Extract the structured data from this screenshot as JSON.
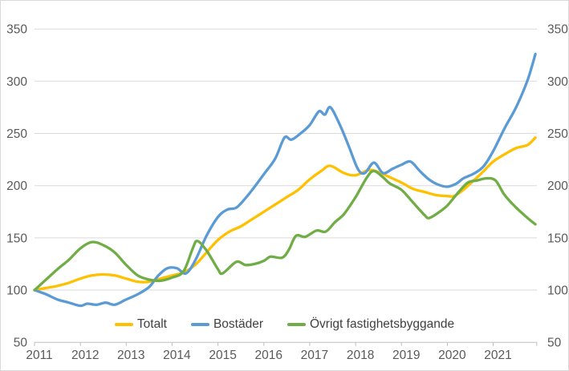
{
  "chart_data": {
    "type": "line",
    "title": "",
    "smoothed": true,
    "grid": true,
    "legend_position": "bottom",
    "x_axis": {
      "range": [
        2011,
        2022.05
      ],
      "tick_labels": [
        "2011",
        "2012",
        "2013",
        "2014",
        "2015",
        "2016",
        "2017",
        "2018",
        "2019",
        "2020",
        "2021"
      ],
      "tick_years": [
        2011,
        2012,
        2013,
        2014,
        2015,
        2016,
        2017,
        2018,
        2019,
        2020,
        2021
      ]
    },
    "y_axis": {
      "range": [
        50,
        350
      ],
      "ticks": [
        50,
        100,
        150,
        200,
        250,
        300,
        350
      ],
      "sides": "both"
    },
    "style": {
      "gridline_color": "#d9d9d9",
      "axis_line_color": "#bfbfbf",
      "axis_text_color": "#595959",
      "background": "#ffffff"
    },
    "series": [
      {
        "name": "Totalt",
        "color": "#FFC000",
        "points": [
          [
            2011.0,
            100
          ],
          [
            2011.25,
            102
          ],
          [
            2011.5,
            104
          ],
          [
            2011.75,
            107
          ],
          [
            2012.0,
            111
          ],
          [
            2012.25,
            114
          ],
          [
            2012.5,
            115
          ],
          [
            2012.75,
            114
          ],
          [
            2013.0,
            111
          ],
          [
            2013.25,
            108
          ],
          [
            2013.5,
            108
          ],
          [
            2013.75,
            111
          ],
          [
            2014.0,
            114
          ],
          [
            2014.25,
            117
          ],
          [
            2014.5,
            124
          ],
          [
            2014.75,
            136
          ],
          [
            2015.0,
            148
          ],
          [
            2015.25,
            156
          ],
          [
            2015.5,
            161
          ],
          [
            2015.75,
            168
          ],
          [
            2016.0,
            175
          ],
          [
            2016.25,
            182
          ],
          [
            2016.5,
            189
          ],
          [
            2016.75,
            196
          ],
          [
            2017.0,
            206
          ],
          [
            2017.25,
            214
          ],
          [
            2017.45,
            219
          ],
          [
            2017.75,
            212
          ],
          [
            2018.0,
            210
          ],
          [
            2018.3,
            215
          ],
          [
            2018.55,
            212
          ],
          [
            2018.75,
            208
          ],
          [
            2019.0,
            203
          ],
          [
            2019.25,
            197
          ],
          [
            2019.5,
            194
          ],
          [
            2019.75,
            191
          ],
          [
            2020.0,
            190
          ],
          [
            2020.15,
            190
          ],
          [
            2020.35,
            196
          ],
          [
            2020.55,
            204
          ],
          [
            2020.75,
            212
          ],
          [
            2021.0,
            223
          ],
          [
            2021.25,
            230
          ],
          [
            2021.5,
            236
          ],
          [
            2021.75,
            239
          ],
          [
            2021.92,
            246
          ]
        ]
      },
      {
        "name": "Bostäder",
        "color": "#5B9BD5",
        "points": [
          [
            2011.0,
            100
          ],
          [
            2011.25,
            96
          ],
          [
            2011.5,
            91
          ],
          [
            2011.75,
            88
          ],
          [
            2012.0,
            85
          ],
          [
            2012.15,
            87
          ],
          [
            2012.35,
            86
          ],
          [
            2012.55,
            88
          ],
          [
            2012.75,
            86
          ],
          [
            2013.0,
            91
          ],
          [
            2013.25,
            96
          ],
          [
            2013.5,
            103
          ],
          [
            2013.7,
            114
          ],
          [
            2013.9,
            121
          ],
          [
            2014.1,
            121
          ],
          [
            2014.3,
            116
          ],
          [
            2014.5,
            128
          ],
          [
            2014.75,
            152
          ],
          [
            2015.0,
            170
          ],
          [
            2015.2,
            177
          ],
          [
            2015.4,
            179
          ],
          [
            2015.6,
            188
          ],
          [
            2015.8,
            199
          ],
          [
            2016.0,
            211
          ],
          [
            2016.25,
            226
          ],
          [
            2016.45,
            246
          ],
          [
            2016.6,
            244
          ],
          [
            2016.8,
            250
          ],
          [
            2017.0,
            258
          ],
          [
            2017.2,
            271
          ],
          [
            2017.33,
            268
          ],
          [
            2017.45,
            275
          ],
          [
            2017.65,
            259
          ],
          [
            2017.85,
            238
          ],
          [
            2018.05,
            216
          ],
          [
            2018.2,
            212
          ],
          [
            2018.4,
            222
          ],
          [
            2018.6,
            212
          ],
          [
            2018.8,
            216
          ],
          [
            2019.0,
            220
          ],
          [
            2019.2,
            223
          ],
          [
            2019.4,
            214
          ],
          [
            2019.6,
            206
          ],
          [
            2019.8,
            201
          ],
          [
            2020.0,
            199
          ],
          [
            2020.2,
            202
          ],
          [
            2020.35,
            207
          ],
          [
            2020.6,
            212
          ],
          [
            2020.8,
            219
          ],
          [
            2021.0,
            233
          ],
          [
            2021.25,
            255
          ],
          [
            2021.5,
            275
          ],
          [
            2021.75,
            301
          ],
          [
            2021.92,
            326
          ]
        ]
      },
      {
        "name": "Övrigt fastighetsbyggande",
        "color": "#70AD47",
        "points": [
          [
            2011.0,
            100
          ],
          [
            2011.25,
            110
          ],
          [
            2011.5,
            120
          ],
          [
            2011.75,
            129
          ],
          [
            2012.0,
            140
          ],
          [
            2012.25,
            146
          ],
          [
            2012.5,
            143
          ],
          [
            2012.75,
            136
          ],
          [
            2013.0,
            124
          ],
          [
            2013.25,
            114
          ],
          [
            2013.5,
            110
          ],
          [
            2013.75,
            109
          ],
          [
            2014.0,
            112
          ],
          [
            2014.25,
            118
          ],
          [
            2014.45,
            140
          ],
          [
            2014.55,
            147
          ],
          [
            2014.75,
            138
          ],
          [
            2015.0,
            120
          ],
          [
            2015.1,
            116
          ],
          [
            2015.4,
            127
          ],
          [
            2015.6,
            124
          ],
          [
            2015.8,
            125
          ],
          [
            2016.0,
            128
          ],
          [
            2016.15,
            132
          ],
          [
            2016.4,
            131
          ],
          [
            2016.55,
            139
          ],
          [
            2016.7,
            152
          ],
          [
            2016.9,
            151
          ],
          [
            2017.15,
            157
          ],
          [
            2017.35,
            156
          ],
          [
            2017.55,
            165
          ],
          [
            2017.75,
            173
          ],
          [
            2018.0,
            189
          ],
          [
            2018.25,
            208
          ],
          [
            2018.4,
            214
          ],
          [
            2018.6,
            208
          ],
          [
            2018.75,
            202
          ],
          [
            2019.0,
            196
          ],
          [
            2019.25,
            184
          ],
          [
            2019.5,
            172
          ],
          [
            2019.6,
            169
          ],
          [
            2019.8,
            174
          ],
          [
            2020.0,
            181
          ],
          [
            2020.25,
            194
          ],
          [
            2020.45,
            203
          ],
          [
            2020.65,
            205
          ],
          [
            2020.85,
            207
          ],
          [
            2021.05,
            205
          ],
          [
            2021.25,
            191
          ],
          [
            2021.5,
            179
          ],
          [
            2021.75,
            169
          ],
          [
            2021.92,
            163
          ]
        ]
      }
    ]
  }
}
